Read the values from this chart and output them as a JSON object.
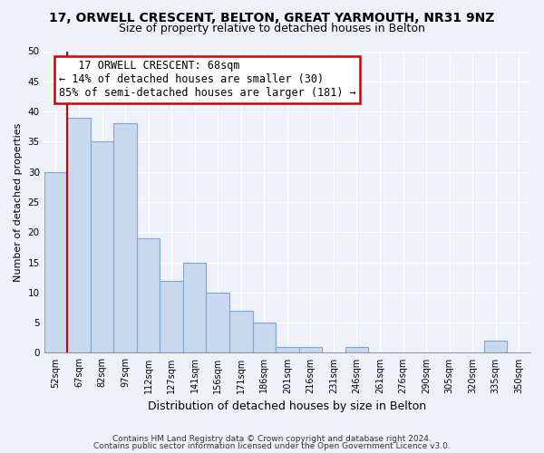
{
  "title": "17, ORWELL CRESCENT, BELTON, GREAT YARMOUTH, NR31 9NZ",
  "subtitle": "Size of property relative to detached houses in Belton",
  "xlabel": "Distribution of detached houses by size in Belton",
  "ylabel": "Number of detached properties",
  "bin_labels": [
    "52sqm",
    "67sqm",
    "82sqm",
    "97sqm",
    "112sqm",
    "127sqm",
    "141sqm",
    "156sqm",
    "171sqm",
    "186sqm",
    "201sqm",
    "216sqm",
    "231sqm",
    "246sqm",
    "261sqm",
    "276sqm",
    "290sqm",
    "305sqm",
    "320sqm",
    "335sqm",
    "350sqm"
  ],
  "bar_heights": [
    30,
    39,
    35,
    38,
    19,
    12,
    15,
    10,
    7,
    5,
    1,
    1,
    0,
    1,
    0,
    0,
    0,
    0,
    0,
    2,
    0
  ],
  "bar_color": "#c8d8ee",
  "bar_edge_color": "#7fa8cc",
  "vline_x": 0.5,
  "vline_color": "#cc0000",
  "annotation_title": "17 ORWELL CRESCENT: 68sqm",
  "annotation_line1": "← 14% of detached houses are smaller (30)",
  "annotation_line2": "85% of semi-detached houses are larger (181) →",
  "annotation_box_color": "white",
  "annotation_box_edge": "#cc0000",
  "ylim": [
    0,
    50
  ],
  "yticks": [
    0,
    5,
    10,
    15,
    20,
    25,
    30,
    35,
    40,
    45,
    50
  ],
  "footer1": "Contains HM Land Registry data © Crown copyright and database right 2024.",
  "footer2": "Contains public sector information licensed under the Open Government Licence v3.0.",
  "background_color": "#eef2f8",
  "grid_color": "#ffffff",
  "title_fontsize": 10,
  "subtitle_fontsize": 9,
  "ylabel_fontsize": 8,
  "xlabel_fontsize": 9,
  "tick_fontsize": 7,
  "ann_fontsize": 8.5,
  "footer_fontsize": 6.5
}
